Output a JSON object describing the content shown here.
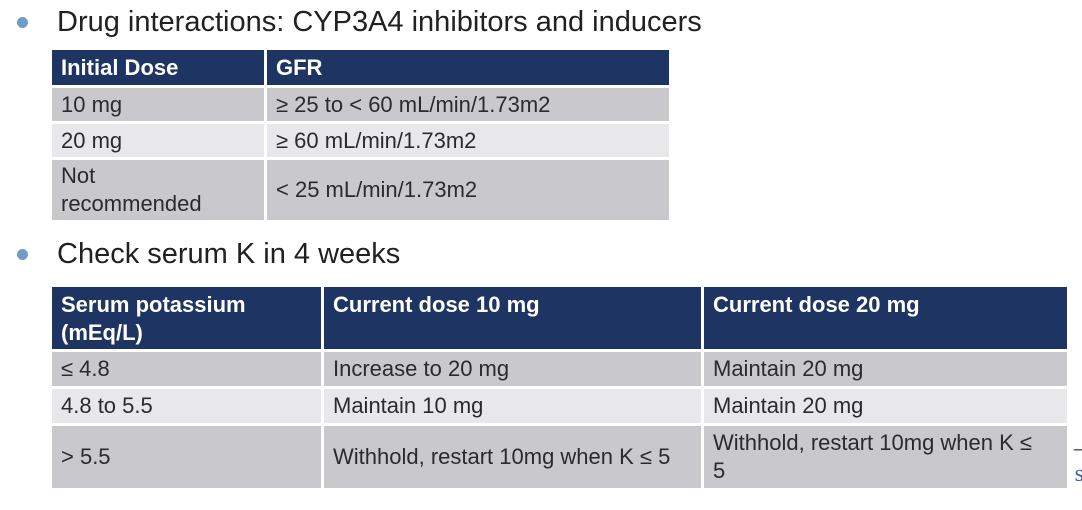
{
  "bullets": [
    {
      "label": "Drug interactions: CYP3A4 inhibitors and inducers"
    },
    {
      "label": "Check serum K in 4 weeks"
    }
  ],
  "dose_gfr_table": {
    "headers": [
      "Initial Dose",
      "GFR"
    ],
    "rows": [
      [
        "10 mg",
        "≥ 25 to < 60 mL/min/1.73m2"
      ],
      [
        "20 mg",
        "≥ 60 mL/min/1.73m2"
      ],
      [
        "Not recommended",
        "< 25 mL/min/1.73m2"
      ]
    ]
  },
  "potassium_table": {
    "headers": [
      "Serum potassium (mEq/L)",
      "Current dose 10 mg",
      "Current dose 20 mg"
    ],
    "rows": [
      [
        "≤ 4.8",
        "Increase to 20 mg",
        "Maintain 20 mg"
      ],
      [
        "4.8 to 5.5",
        "Maintain 10 mg",
        "Maintain 20 mg"
      ],
      [
        "> 5.5",
        "Withhold, restart 10mg when K ≤ 5",
        "Withhold, restart 10mg when K ≤ 5"
      ]
    ]
  },
  "clipped_edge": {
    "dash": "–",
    "letter": "s"
  },
  "colors": {
    "table_header_bg": "#1e3564",
    "row_dark": "#c9c9cd",
    "row_light": "#e8e8ea",
    "bullet_dot": "#6f9dc6",
    "header_text": "#ffffff",
    "body_text": "#2b2b2b",
    "clipped_letter": "#3a5fa8"
  }
}
